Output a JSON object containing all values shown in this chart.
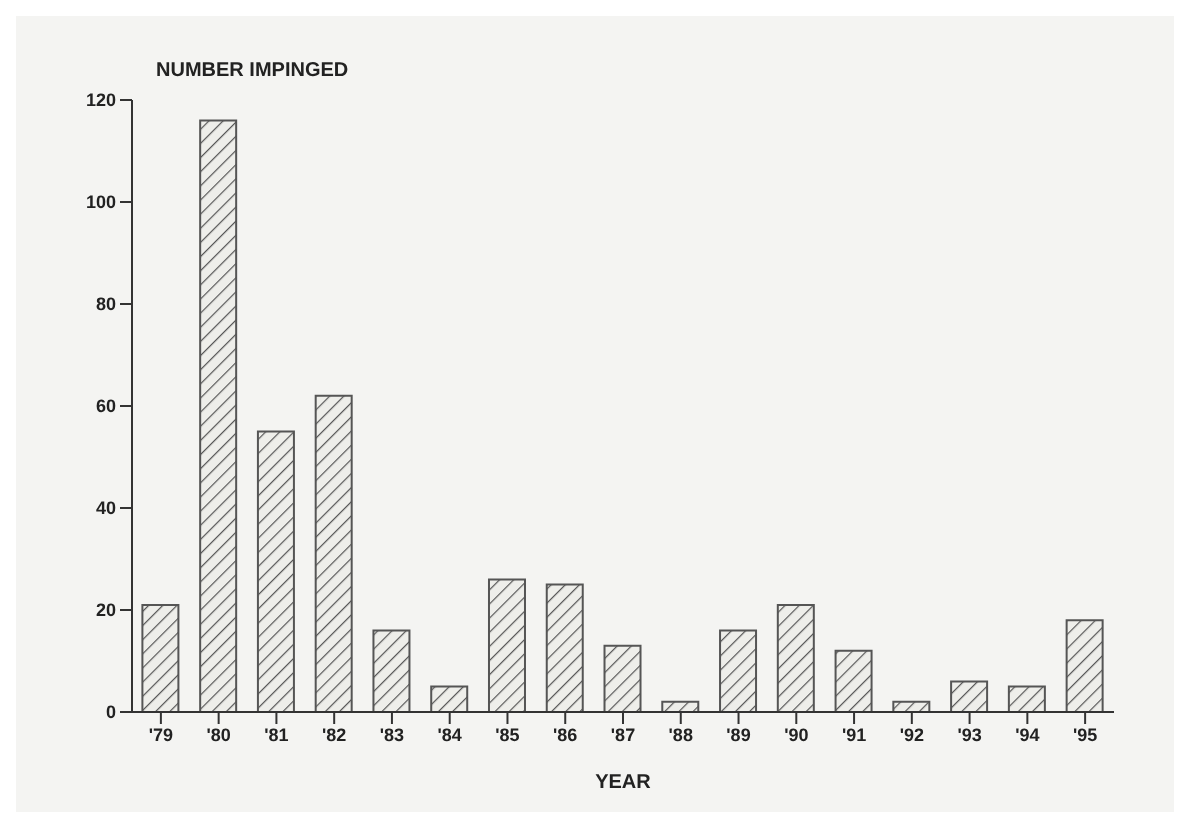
{
  "chart_data": {
    "type": "bar",
    "ylabel": "NUMBER IMPINGED",
    "xlabel": "YEAR",
    "categories": [
      "'79",
      "'80",
      "'81",
      "'82",
      "'83",
      "'84",
      "'85",
      "'86",
      "'87",
      "'88",
      "'89",
      "'90",
      "'91",
      "'92",
      "'93",
      "'94",
      "'95"
    ],
    "values": [
      21,
      116,
      55,
      62,
      16,
      5,
      26,
      25,
      13,
      2,
      16,
      21,
      12,
      2,
      6,
      5,
      18
    ],
    "color": "#555555",
    "ylim": [
      0,
      120
    ],
    "yticks": [
      0,
      20,
      40,
      60,
      80,
      100,
      120
    ],
    "grid": false
  }
}
